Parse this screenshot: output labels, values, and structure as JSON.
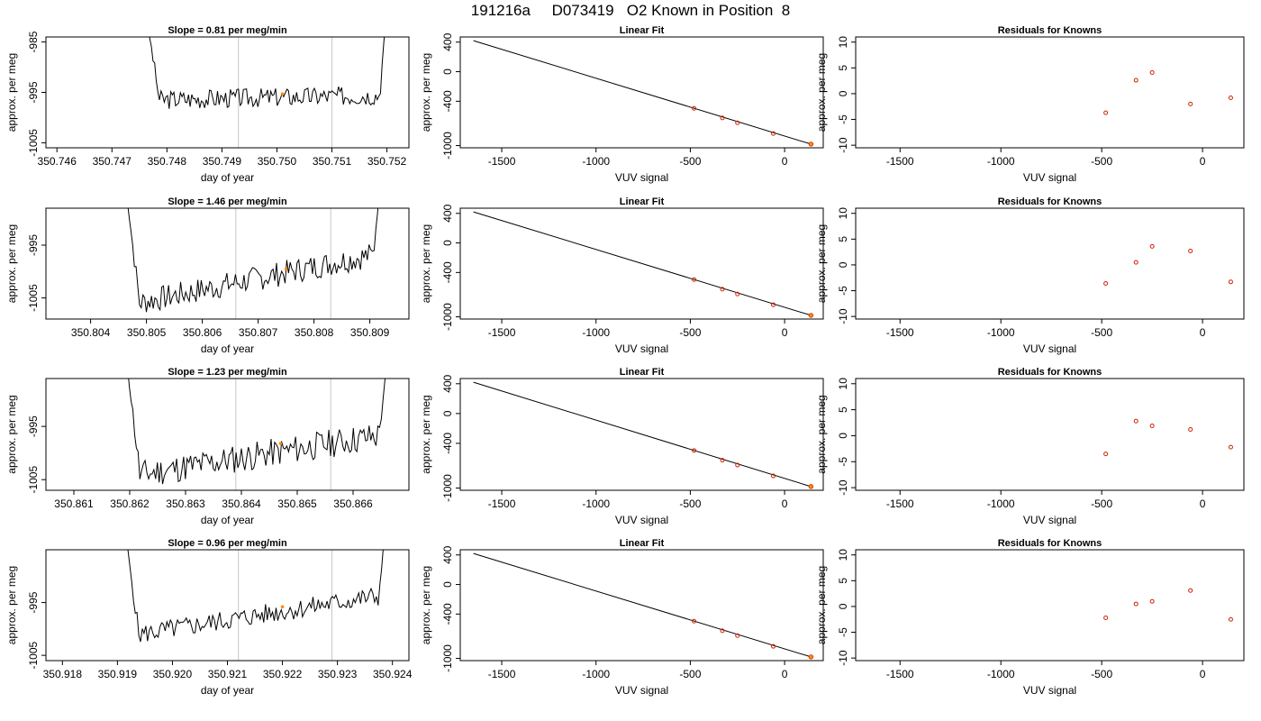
{
  "title": "191216a     D073419   O2 Known in Position  8",
  "colors": {
    "trace": "#000000",
    "vline": "#c8c8c8",
    "marker": "#ff8c00",
    "point": "#cc2200",
    "fit": "#000000"
  },
  "chart_data": [
    {
      "type": "line",
      "title": "Slope =  0.81  per meg/min",
      "xlabel": "day of year",
      "ylabel": "approx. per meg",
      "xlim": [
        350.7458,
        350.7524
      ],
      "ylim": [
        -1006,
        -984
      ],
      "xticks": [
        "350.746",
        "350.747",
        "350.748",
        "350.749",
        "350.750",
        "350.751",
        "350.752"
      ],
      "yticks": [
        "-985",
        "-995",
        "-1005"
      ],
      "vlines": [
        350.7493,
        350.751
      ],
      "marker": {
        "x": 350.7501,
        "y": -995.3
      },
      "trace": {
        "x_start": 350.7476,
        "x_end": 350.752,
        "edge_left": -978,
        "edge_right": -978,
        "base_start": -996.5,
        "base_end": -995.5,
        "noise": 1.2,
        "seed": 3
      }
    },
    {
      "type": "line",
      "title": "Slope =  1.46  per meg/min",
      "xlabel": "day of year",
      "ylabel": "approx. per meg",
      "xlim": [
        350.8032,
        350.8097
      ],
      "ylim": [
        -1009,
        -988
      ],
      "xticks": [
        "350.804",
        "350.805",
        "350.806",
        "350.807",
        "350.808",
        "350.809"
      ],
      "yticks": [
        "-995",
        "-1005"
      ],
      "vlines": [
        350.8066,
        350.8083
      ],
      "marker": {
        "x": 350.8075,
        "y": -999.5
      },
      "trace": {
        "x_start": 350.8046,
        "x_end": 350.8092,
        "edge_left": -981,
        "edge_right": -981,
        "base_start": -1006.5,
        "base_end": -996.5,
        "noise": 1.5,
        "seed": 7
      }
    },
    {
      "type": "line",
      "title": "Slope =  1.23  per meg/min",
      "xlabel": "day of year",
      "ylabel": "approx. per meg",
      "xlim": [
        350.8605,
        350.867
      ],
      "ylim": [
        -1007,
        -986
      ],
      "xticks": [
        "350.861",
        "350.862",
        "350.863",
        "350.864",
        "350.865",
        "350.866"
      ],
      "yticks": [
        "-995",
        "-1005"
      ],
      "vlines": [
        350.8639,
        350.8656
      ],
      "marker": {
        "x": 350.8647,
        "y": -998.2
      },
      "trace": {
        "x_start": 350.8619,
        "x_end": 350.8666,
        "edge_left": -978,
        "edge_right": -984,
        "base_start": -1004.5,
        "base_end": -996.5,
        "noise": 1.7,
        "seed": 11
      }
    },
    {
      "type": "line",
      "title": "Slope =  0.96  per meg/min",
      "xlabel": "day of year",
      "ylabel": "approx. per meg",
      "xlim": [
        350.9177,
        350.9243
      ],
      "ylim": [
        -1006,
        -985
      ],
      "xticks": [
        "350.918",
        "350.919",
        "350.920",
        "350.921",
        "350.922",
        "350.923",
        "350.924"
      ],
      "yticks": [
        "-995",
        "-1005"
      ],
      "vlines": [
        350.9212,
        350.9229
      ],
      "marker": {
        "x": 350.922,
        "y": -995.8
      },
      "trace": {
        "x_start": 350.9191,
        "x_end": 350.9239,
        "edge_left": -978,
        "edge_right": -978,
        "base_start": -1001.5,
        "base_end": -993.5,
        "noise": 1.2,
        "seed": 5
      }
    },
    {
      "type": "scatter",
      "title": "Linear Fit",
      "xlabel": "VUV signal",
      "ylabel": "approx. per meg",
      "xlim": [
        -1720,
        205
      ],
      "ylim": [
        -1030,
        470
      ],
      "xticks": [
        -1500,
        -1000,
        -500,
        0
      ],
      "yticks": [
        400,
        0,
        -400,
        -1000
      ],
      "fit_line": {
        "x": [
          -1650,
          140
        ],
        "y": [
          420,
          -980
        ]
      },
      "points": {
        "x": [
          -480,
          -330,
          -250,
          -60
        ],
        "y": [
          -496,
          -626,
          -692,
          -837
        ]
      },
      "known": {
        "x": 140,
        "y": -980
      }
    },
    {
      "type": "scatter",
      "title": "Linear Fit",
      "xlabel": "VUV signal",
      "ylabel": "approx. per meg",
      "xlim": [
        -1720,
        205
      ],
      "ylim": [
        -1030,
        470
      ],
      "xticks": [
        -1500,
        -1000,
        -500,
        0
      ],
      "yticks": [
        400,
        0,
        -400,
        -1000
      ],
      "fit_line": {
        "x": [
          -1650,
          140
        ],
        "y": [
          420,
          -980
        ]
      },
      "points": {
        "x": [
          -480,
          -330,
          -250,
          -60
        ],
        "y": [
          -496,
          -626,
          -692,
          -837
        ]
      },
      "known": {
        "x": 140,
        "y": -980
      }
    },
    {
      "type": "scatter",
      "title": "Linear Fit",
      "xlabel": "VUV signal",
      "ylabel": "approx. per meg",
      "xlim": [
        -1720,
        205
      ],
      "ylim": [
        -1030,
        470
      ],
      "xticks": [
        -1500,
        -1000,
        -500,
        0
      ],
      "yticks": [
        400,
        0,
        -400,
        -1000
      ],
      "fit_line": {
        "x": [
          -1650,
          140
        ],
        "y": [
          420,
          -980
        ]
      },
      "points": {
        "x": [
          -480,
          -330,
          -250,
          -60
        ],
        "y": [
          -496,
          -626,
          -692,
          -837
        ]
      },
      "known": {
        "x": 140,
        "y": -980
      }
    },
    {
      "type": "scatter",
      "title": "Linear Fit",
      "xlabel": "VUV signal",
      "ylabel": "approx. per meg",
      "xlim": [
        -1720,
        205
      ],
      "ylim": [
        -1030,
        470
      ],
      "xticks": [
        -1500,
        -1000,
        -500,
        0
      ],
      "yticks": [
        400,
        0,
        -400,
        -1000
      ],
      "fit_line": {
        "x": [
          -1650,
          140
        ],
        "y": [
          420,
          -980
        ]
      },
      "points": {
        "x": [
          -480,
          -330,
          -250,
          -60
        ],
        "y": [
          -496,
          -626,
          -692,
          -837
        ]
      },
      "known": {
        "x": 140,
        "y": -980
      }
    },
    {
      "type": "scatter",
      "title": "Residuals for Knowns",
      "xlabel": "VUV signal",
      "ylabel": "approx. per meg",
      "xlim": [
        -1720,
        205
      ],
      "ylim": [
        -10.5,
        11
      ],
      "xticks": [
        -1500,
        -1000,
        -500,
        0
      ],
      "yticks": [
        10,
        5,
        0,
        -5,
        -10
      ],
      "points": {
        "x": [
          -480,
          -330,
          -250,
          -60,
          140
        ],
        "y": [
          -3.7,
          2.6,
          4.1,
          -2.0,
          -0.8
        ]
      }
    },
    {
      "type": "scatter",
      "title": "Residuals for Knowns",
      "xlabel": "VUV signal",
      "ylabel": "approx. per meg",
      "xlim": [
        -1720,
        205
      ],
      "ylim": [
        -10.5,
        11
      ],
      "xticks": [
        -1500,
        -1000,
        -500,
        0
      ],
      "yticks": [
        10,
        5,
        0,
        -5,
        -10
      ],
      "points": {
        "x": [
          -480,
          -330,
          -250,
          -60,
          140
        ],
        "y": [
          -3.6,
          0.5,
          3.6,
          2.7,
          -3.3
        ]
      }
    },
    {
      "type": "scatter",
      "title": "Residuals for Knowns",
      "xlabel": "VUV signal",
      "ylabel": "approx. per meg",
      "xlim": [
        -1720,
        205
      ],
      "ylim": [
        -10.5,
        11
      ],
      "xticks": [
        -1500,
        -1000,
        -500,
        0
      ],
      "yticks": [
        10,
        5,
        0,
        -5,
        -10
      ],
      "points": {
        "x": [
          -480,
          -330,
          -250,
          -60,
          140
        ],
        "y": [
          -3.5,
          2.8,
          1.9,
          1.2,
          -2.2
        ]
      }
    },
    {
      "type": "scatter",
      "title": "Residuals for Knowns",
      "xlabel": "VUV signal",
      "ylabel": "approx. per meg",
      "xlim": [
        -1720,
        205
      ],
      "ylim": [
        -10.5,
        11
      ],
      "xticks": [
        -1500,
        -1000,
        -500,
        0
      ],
      "yticks": [
        10,
        5,
        0,
        -5,
        -10
      ],
      "points": {
        "x": [
          -480,
          -330,
          -250,
          -60,
          140
        ],
        "y": [
          -2.2,
          0.5,
          1.0,
          3.1,
          -2.5
        ]
      }
    }
  ]
}
